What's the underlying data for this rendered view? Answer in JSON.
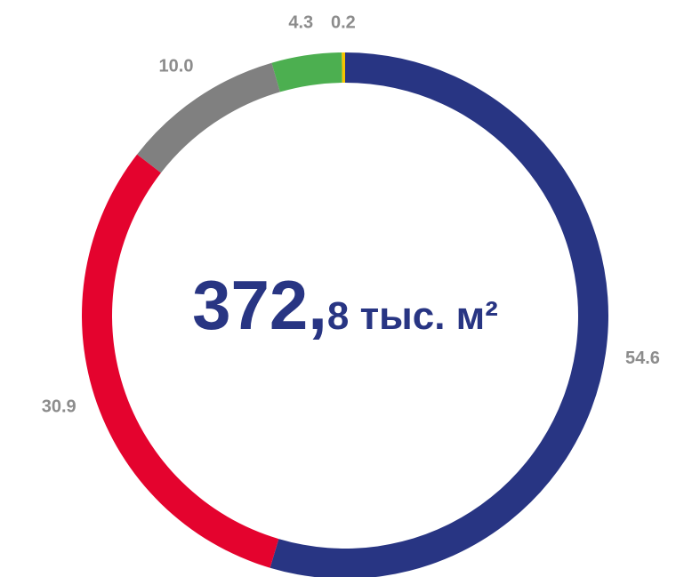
{
  "chart_data": {
    "type": "donut",
    "categories": [
      null,
      null,
      null,
      null,
      null
    ],
    "values": [
      54.6,
      30.9,
      10.0,
      4.3,
      0.2
    ],
    "value_labels": [
      "54.6",
      "30.9",
      "10.0",
      "4.3",
      "0.2"
    ],
    "colors": [
      "#283583",
      "#e4032e",
      "#808080",
      "#4caf50",
      "#f5c400"
    ],
    "center_label": [
      "372,",
      "8 тыс. м²"
    ]
  }
}
